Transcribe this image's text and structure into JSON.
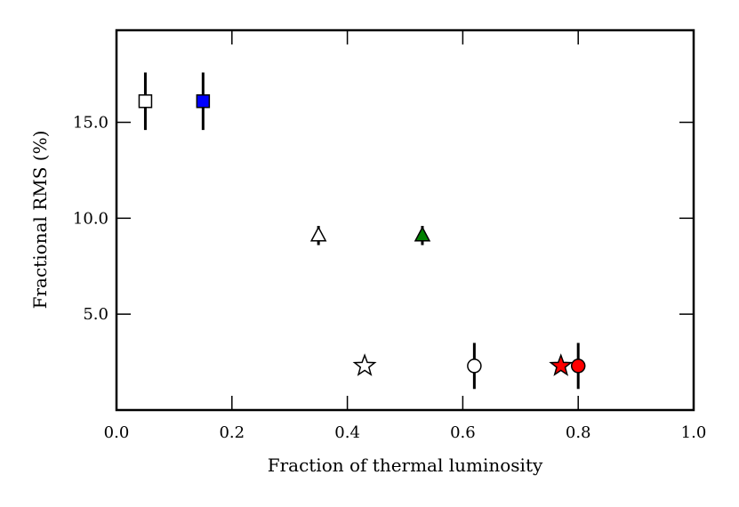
{
  "chart_data": {
    "type": "scatter",
    "title": "",
    "xlabel": "Fraction of thermal luminosity",
    "ylabel": "Fractional RMS (%)",
    "xlim": [
      0.0,
      1.0
    ],
    "ylim": [
      0.0,
      19.8
    ],
    "xticks": [
      0.0,
      0.2,
      0.4,
      0.6,
      0.8,
      1.0
    ],
    "xtick_labels": [
      "0.0",
      "0.2",
      "0.4",
      "0.6",
      "0.8",
      "1.0"
    ],
    "yticks": [
      5.0,
      10.0,
      15.0
    ],
    "ytick_labels": [
      "5.0",
      "10.0",
      "15.0"
    ],
    "grid": false,
    "points": [
      {
        "x": 0.05,
        "y": 16.1,
        "err": 1.5,
        "marker": "square",
        "color": "#ffffff"
      },
      {
        "x": 0.15,
        "y": 16.1,
        "err": 1.5,
        "marker": "square",
        "color": "#0000ff"
      },
      {
        "x": 0.35,
        "y": 9.1,
        "err": 0.5,
        "marker": "triangle",
        "color": "#ffffff"
      },
      {
        "x": 0.53,
        "y": 9.1,
        "err": 0.5,
        "marker": "triangle",
        "color": "#008000"
      },
      {
        "x": 0.43,
        "y": 2.3,
        "err": 0.2,
        "marker": "star",
        "color": "#ffffff"
      },
      {
        "x": 0.62,
        "y": 2.3,
        "err": 1.2,
        "marker": "circle",
        "color": "#ffffff"
      },
      {
        "x": 0.77,
        "y": 2.3,
        "err": 0.2,
        "marker": "star",
        "color": "#ff0000"
      },
      {
        "x": 0.8,
        "y": 2.3,
        "err": 1.2,
        "marker": "circle",
        "color": "#ff0000"
      }
    ]
  }
}
